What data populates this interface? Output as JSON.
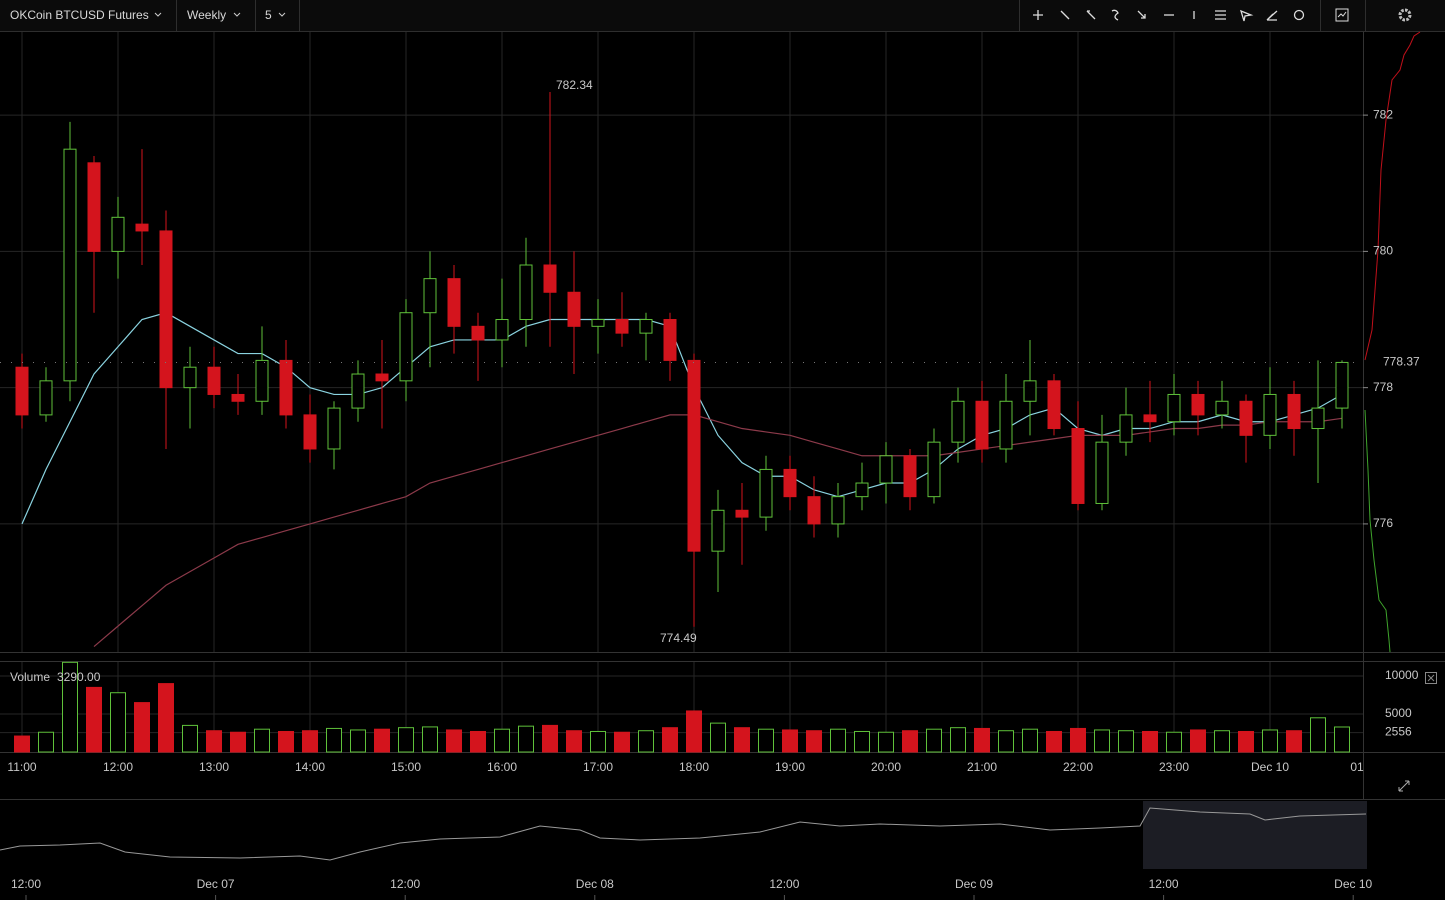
{
  "toolbar": {
    "symbol": "OKCoin BTCUSD Futures",
    "range": "Weekly",
    "interval": "5"
  },
  "chart_data": {
    "type": "candlestick",
    "categories": [
      "11:00",
      null,
      null,
      null,
      "12:00",
      null,
      null,
      null,
      "13:00",
      null,
      null,
      null,
      "14:00",
      null,
      null,
      null,
      "15:00",
      null,
      null,
      null,
      "16:00",
      null,
      null,
      null,
      "17:00",
      null,
      null,
      null,
      "18:00",
      null,
      null,
      null,
      "19:00",
      null,
      null,
      null,
      "20:00",
      null,
      null,
      null,
      "21:00",
      null,
      null,
      null,
      "22:00",
      null,
      null,
      null,
      "23:00",
      null,
      null,
      null,
      "Dec 10",
      null,
      null,
      null,
      "01"
    ],
    "open": [
      778.3,
      777.6,
      778.1,
      781.3,
      780.0,
      780.4,
      780.3,
      778.0,
      778.3,
      777.9,
      777.8,
      778.4,
      777.6,
      777.1,
      777.7,
      778.2,
      778.1,
      779.1,
      779.6,
      778.9,
      778.7,
      779.0,
      779.8,
      779.4,
      778.9,
      779.0,
      778.8,
      779.0,
      778.4,
      775.6,
      776.2,
      776.1,
      776.8,
      776.4,
      776.0,
      776.4,
      776.6,
      777.0,
      776.4,
      777.2,
      777.8,
      777.1,
      777.8,
      778.1,
      777.4,
      776.3,
      777.2,
      777.6,
      777.5,
      777.9,
      777.6,
      777.8,
      777.3,
      777.9,
      777.4,
      777.7,
      null
    ],
    "high": [
      778.5,
      778.3,
      781.9,
      781.4,
      780.8,
      781.5,
      780.6,
      778.6,
      778.6,
      778.2,
      778.9,
      778.7,
      777.9,
      777.8,
      778.4,
      778.7,
      779.3,
      780.0,
      779.8,
      779.1,
      779.6,
      780.2,
      782.34,
      780.0,
      779.3,
      779.4,
      779.1,
      779.1,
      778.5,
      776.5,
      776.6,
      777.0,
      777.0,
      776.7,
      776.6,
      776.9,
      777.2,
      777.1,
      777.4,
      778.0,
      778.1,
      778.2,
      778.7,
      778.2,
      777.8,
      777.6,
      778.0,
      778.1,
      778.2,
      778.1,
      778.1,
      777.9,
      778.3,
      778.1,
      778.4,
      778.4,
      null
    ],
    "low": [
      777.4,
      777.5,
      777.8,
      779.1,
      779.6,
      779.8,
      777.1,
      777.4,
      777.7,
      777.6,
      777.6,
      777.4,
      776.9,
      776.8,
      777.5,
      777.4,
      777.8,
      778.3,
      778.5,
      778.1,
      778.3,
      778.6,
      778.6,
      778.2,
      778.5,
      778.6,
      778.4,
      778.1,
      774.49,
      775.0,
      775.4,
      775.9,
      776.2,
      775.8,
      775.8,
      776.2,
      776.3,
      776.2,
      776.3,
      776.9,
      776.9,
      776.9,
      777.3,
      777.3,
      776.2,
      776.2,
      777.0,
      777.2,
      777.3,
      777.3,
      777.4,
      776.9,
      777.1,
      777.0,
      776.6,
      777.4,
      null
    ],
    "close": [
      777.6,
      778.1,
      781.5,
      780.0,
      780.5,
      780.3,
      778.0,
      778.3,
      777.9,
      777.8,
      778.4,
      777.6,
      777.1,
      777.7,
      778.2,
      778.1,
      779.1,
      779.6,
      778.9,
      778.7,
      779.0,
      779.8,
      779.4,
      778.9,
      779.0,
      778.8,
      779.0,
      778.4,
      775.6,
      776.2,
      776.1,
      776.8,
      776.4,
      776.0,
      776.4,
      776.6,
      777.0,
      776.4,
      777.2,
      777.8,
      777.1,
      777.8,
      778.1,
      777.4,
      776.3,
      777.2,
      777.6,
      777.5,
      777.9,
      777.6,
      777.8,
      777.3,
      777.9,
      777.4,
      777.7,
      778.37,
      null
    ],
    "overlays": [
      {
        "color": "#8ad3e0",
        "values": [
          776.0,
          776.8,
          777.5,
          778.2,
          778.6,
          779.0,
          779.1,
          778.9,
          778.7,
          778.5,
          778.5,
          778.3,
          778.0,
          777.9,
          777.9,
          778.0,
          778.3,
          778.6,
          778.7,
          778.7,
          778.7,
          778.9,
          779.0,
          779.0,
          779.0,
          779.0,
          779.0,
          778.9,
          778.0,
          777.3,
          776.9,
          776.7,
          776.7,
          776.5,
          776.4,
          776.5,
          776.6,
          776.6,
          776.8,
          777.1,
          777.3,
          777.4,
          777.6,
          777.7,
          777.4,
          777.3,
          777.4,
          777.4,
          777.5,
          777.5,
          777.6,
          777.5,
          777.5,
          777.6,
          777.7,
          777.9,
          null
        ]
      },
      {
        "color": "#8c3a4a",
        "values": [
          null,
          null,
          null,
          774.2,
          774.5,
          774.8,
          775.1,
          775.3,
          775.5,
          775.7,
          775.8,
          775.9,
          776.0,
          776.1,
          776.2,
          776.3,
          776.4,
          776.6,
          776.7,
          776.8,
          776.9,
          777.0,
          777.1,
          777.2,
          777.3,
          777.4,
          777.5,
          777.6,
          777.6,
          777.5,
          777.4,
          777.35,
          777.3,
          777.2,
          777.1,
          777.0,
          777.0,
          777.0,
          777.0,
          777.05,
          777.1,
          777.15,
          777.2,
          777.25,
          777.3,
          777.3,
          777.3,
          777.35,
          777.4,
          777.4,
          777.45,
          777.45,
          777.5,
          777.5,
          777.5,
          777.55,
          null
        ]
      }
    ],
    "up_color": "#5fc13a",
    "down_color": "#d4141d",
    "ylim": [
      774.12,
      783.22
    ],
    "yticks": [
      776,
      778,
      780,
      782
    ],
    "grid": true,
    "last_price": 778.37,
    "annotations": [
      "782.34",
      "774.49"
    ],
    "volume": {
      "label": "Volume",
      "last": {
        "value": 3290,
        "label": "3290.00"
      },
      "values": [
        2100,
        2600,
        11800,
        8500,
        7800,
        6500,
        9000,
        3500,
        2800,
        2600,
        3000,
        2700,
        2800,
        3100,
        2900,
        3000,
        3200,
        3300,
        2900,
        2700,
        3000,
        3400,
        3500,
        2800,
        2700,
        2600,
        2800,
        3200,
        5400,
        3800,
        3200,
        3000,
        2900,
        2800,
        3000,
        2700,
        2600,
        2800,
        3000,
        3200,
        3100,
        2800,
        3000,
        2700,
        3100,
        2900,
        2800,
        2700,
        2600,
        2900,
        2800,
        2700,
        2900,
        2800,
        4500,
        3290,
        null
      ],
      "ylim": [
        0,
        11842
      ],
      "yticks": [
        10000,
        5000,
        2556
      ]
    },
    "navigator_labels": [
      "12:00",
      "Dec 07",
      "12:00",
      "Dec 08",
      "12:00",
      "Dec 09",
      "12:00",
      "Dec 10"
    ]
  }
}
